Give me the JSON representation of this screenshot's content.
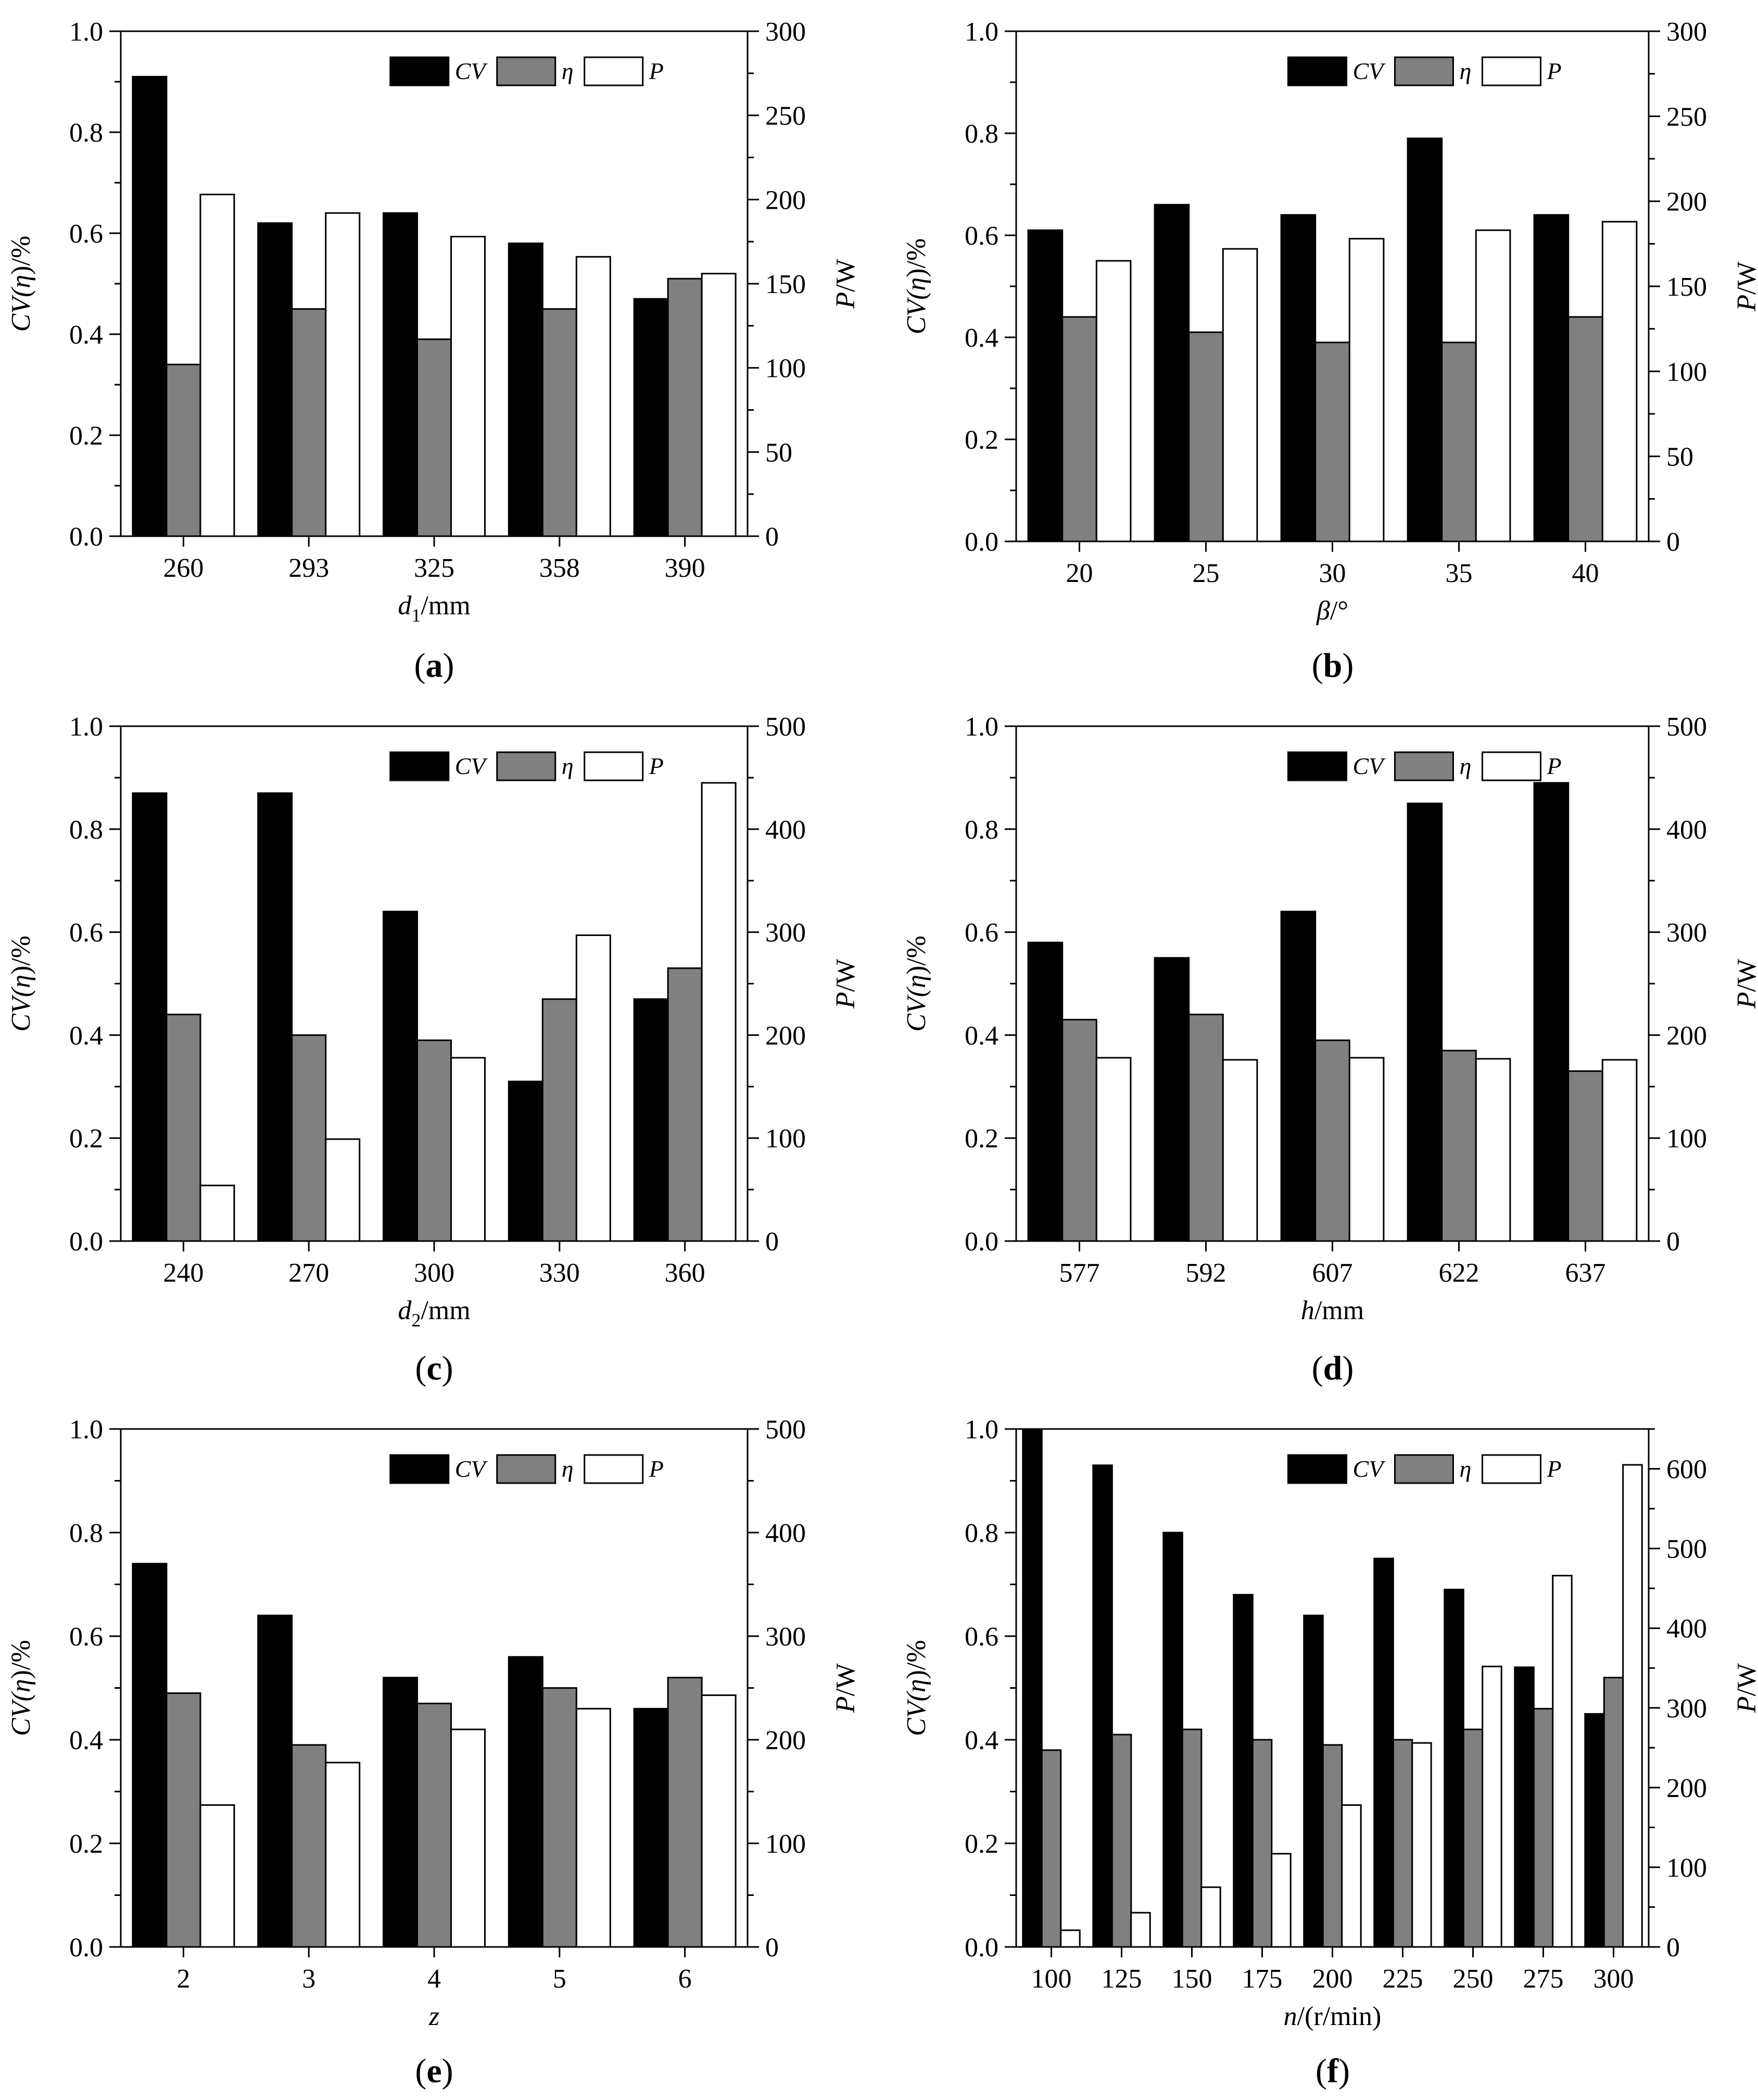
{
  "colors": {
    "cv": "#000000",
    "eta": "#808080",
    "p": "#ffffff",
    "axis": "#000000"
  },
  "chart_data": [
    {
      "type": "bar",
      "panel_label_text": "a",
      "categories": [
        "260",
        "293",
        "325",
        "358",
        "390"
      ],
      "xlabel": {
        "main": "d",
        "sub": "1",
        "unit": "/mm"
      },
      "ylabel_left": {
        "pre": "CV(",
        "sym": "η",
        "post": ")/%"
      },
      "ylabel_right": {
        "sym": "P",
        "post": "/W"
      },
      "ylim_left": [
        0,
        1.0
      ],
      "yticks_left": [
        "0.0",
        "0.2",
        "0.4",
        "0.6",
        "0.8",
        "1.0"
      ],
      "ylim_right": [
        0,
        300
      ],
      "yticks_right": [
        "0",
        "50",
        "100",
        "150",
        "200",
        "250",
        "300"
      ],
      "legend": [
        "CV",
        "η",
        "P"
      ],
      "series": [
        {
          "name": "CV",
          "axis": "left",
          "values": [
            0.91,
            0.62,
            0.64,
            0.58,
            0.47
          ]
        },
        {
          "name": "η",
          "axis": "left",
          "values": [
            0.34,
            0.45,
            0.39,
            0.45,
            0.51
          ]
        },
        {
          "name": "P",
          "axis": "right",
          "values": [
            203,
            192,
            178,
            166,
            156
          ]
        }
      ]
    },
    {
      "type": "bar",
      "panel_label_text": "b",
      "categories": [
        "20",
        "25",
        "30",
        "35",
        "40"
      ],
      "xlabel": {
        "main": "β",
        "sub": "",
        "unit": "/°"
      },
      "ylabel_left": {
        "pre": "CV(",
        "sym": "η",
        "post": ")/%"
      },
      "ylabel_right": {
        "sym": "P",
        "post": "/W"
      },
      "ylim_left": [
        0,
        1.0
      ],
      "yticks_left": [
        "0.0",
        "0.2",
        "0.4",
        "0.6",
        "0.8",
        "1.0"
      ],
      "ylim_right": [
        0,
        300
      ],
      "yticks_right": [
        "0",
        "50",
        "100",
        "150",
        "200",
        "250",
        "300"
      ],
      "legend": [
        "CV",
        "η",
        "P"
      ],
      "series": [
        {
          "name": "CV",
          "axis": "left",
          "values": [
            0.61,
            0.66,
            0.64,
            0.79,
            0.64
          ]
        },
        {
          "name": "η",
          "axis": "left",
          "values": [
            0.44,
            0.41,
            0.39,
            0.39,
            0.44
          ]
        },
        {
          "name": "P",
          "axis": "right",
          "values": [
            165,
            172,
            178,
            183,
            188
          ]
        }
      ]
    },
    {
      "type": "bar",
      "panel_label_text": "c",
      "categories": [
        "240",
        "270",
        "300",
        "330",
        "360"
      ],
      "xlabel": {
        "main": "d",
        "sub": "2",
        "unit": "/mm"
      },
      "ylabel_left": {
        "pre": "CV(",
        "sym": "η",
        "post": ")/%"
      },
      "ylabel_right": {
        "sym": "P",
        "post": "/W"
      },
      "ylim_left": [
        0,
        1.0
      ],
      "yticks_left": [
        "0.0",
        "0.2",
        "0.4",
        "0.6",
        "0.8",
        "1.0"
      ],
      "ylim_right": [
        0,
        500
      ],
      "yticks_right": [
        "0",
        "100",
        "200",
        "300",
        "400",
        "500"
      ],
      "legend": [
        "CV",
        "η",
        "P"
      ],
      "series": [
        {
          "name": "CV",
          "axis": "left",
          "values": [
            0.87,
            0.87,
            0.64,
            0.31,
            0.47
          ]
        },
        {
          "name": "η",
          "axis": "left",
          "values": [
            0.44,
            0.4,
            0.39,
            0.47,
            0.53
          ]
        },
        {
          "name": "P",
          "axis": "right",
          "values": [
            54,
            99,
            178,
            297,
            445
          ]
        }
      ]
    },
    {
      "type": "bar",
      "panel_label_text": "d",
      "categories": [
        "577",
        "592",
        "607",
        "622",
        "637"
      ],
      "xlabel": {
        "main": "h",
        "sub": "",
        "unit": "/mm"
      },
      "ylabel_left": {
        "pre": "CV(",
        "sym": "η",
        "post": ")/%"
      },
      "ylabel_right": {
        "sym": "P",
        "post": "/W"
      },
      "ylim_left": [
        0,
        1.0
      ],
      "yticks_left": [
        "0.0",
        "0.2",
        "0.4",
        "0.6",
        "0.8",
        "1.0"
      ],
      "ylim_right": [
        0,
        500
      ],
      "yticks_right": [
        "0",
        "100",
        "200",
        "300",
        "400",
        "500"
      ],
      "legend": [
        "CV",
        "η",
        "P"
      ],
      "series": [
        {
          "name": "CV",
          "axis": "left",
          "values": [
            0.58,
            0.55,
            0.64,
            0.85,
            0.89
          ]
        },
        {
          "name": "η",
          "axis": "left",
          "values": [
            0.43,
            0.44,
            0.39,
            0.37,
            0.33
          ]
        },
        {
          "name": "P",
          "axis": "right",
          "values": [
            178,
            176,
            178,
            177,
            176
          ]
        }
      ]
    },
    {
      "type": "bar",
      "panel_label_text": "e",
      "categories": [
        "2",
        "3",
        "4",
        "5",
        "6"
      ],
      "xlabel": {
        "main": "z",
        "sub": "",
        "unit": ""
      },
      "ylabel_left": {
        "pre": "CV(",
        "sym": "η",
        "post": ")/%"
      },
      "ylabel_right": {
        "sym": "P",
        "post": "/W"
      },
      "ylim_left": [
        0,
        1.0
      ],
      "yticks_left": [
        "0.0",
        "0.2",
        "0.4",
        "0.6",
        "0.8",
        "1.0"
      ],
      "ylim_right": [
        0,
        500
      ],
      "yticks_right": [
        "0",
        "100",
        "200",
        "300",
        "400",
        "500"
      ],
      "legend": [
        "CV",
        "η",
        "P"
      ],
      "series": [
        {
          "name": "CV",
          "axis": "left",
          "values": [
            0.74,
            0.64,
            0.52,
            0.56,
            0.46
          ]
        },
        {
          "name": "η",
          "axis": "left",
          "values": [
            0.49,
            0.39,
            0.47,
            0.5,
            0.52
          ]
        },
        {
          "name": "P",
          "axis": "right",
          "values": [
            137,
            178,
            210,
            230,
            243
          ]
        }
      ]
    },
    {
      "type": "bar",
      "panel_label_text": "f",
      "categories": [
        "100",
        "125",
        "150",
        "175",
        "200",
        "225",
        "250",
        "275",
        "300"
      ],
      "xlabel": {
        "main": "n",
        "sub": "",
        "unit": "/(r/min)"
      },
      "ylabel_left": {
        "pre": "CV(",
        "sym": "η",
        "post": ")/%"
      },
      "ylabel_right": {
        "sym": "P",
        "post": "/W"
      },
      "ylim_left": [
        0,
        1.0
      ],
      "yticks_left": [
        "0.0",
        "0.2",
        "0.4",
        "0.6",
        "0.8",
        "1.0"
      ],
      "ylim_right": [
        0,
        650
      ],
      "yticks_right": [
        "0",
        "100",
        "200",
        "300",
        "400",
        "500",
        "600"
      ],
      "legend": [
        "CV",
        "η",
        "P"
      ],
      "series": [
        {
          "name": "CV",
          "axis": "left",
          "values": [
            1.0,
            0.93,
            0.8,
            0.68,
            0.64,
            0.75,
            0.69,
            0.54,
            0.45
          ]
        },
        {
          "name": "η",
          "axis": "left",
          "values": [
            0.38,
            0.41,
            0.42,
            0.4,
            0.39,
            0.4,
            0.42,
            0.46,
            0.52
          ]
        },
        {
          "name": "P",
          "axis": "right",
          "values": [
            21,
            43,
            75,
            117,
            178,
            256,
            352,
            466,
            605
          ]
        }
      ]
    }
  ]
}
